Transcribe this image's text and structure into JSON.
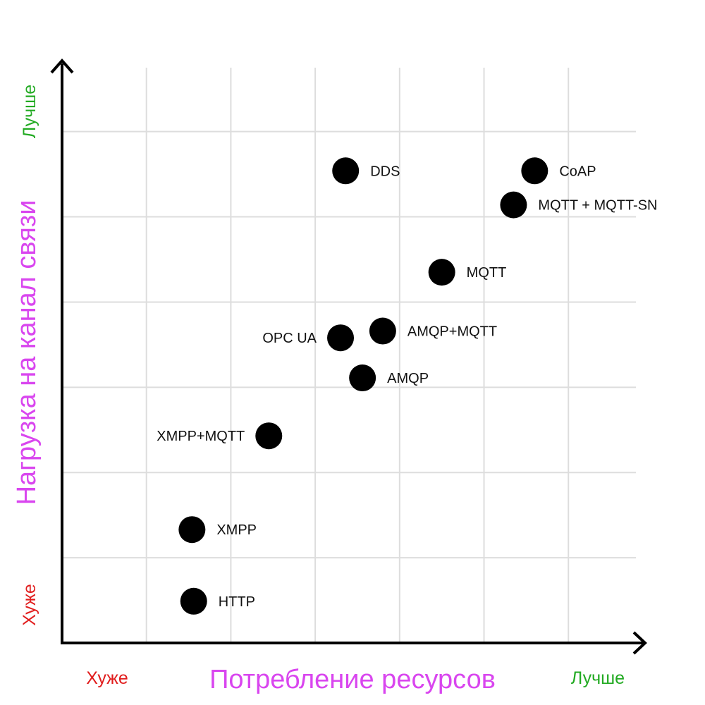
{
  "chart_data": {
    "type": "scatter",
    "xlabel": "Потребление ресурсов",
    "ylabel": "Нагрузка на канал связи",
    "x_low_label": "Хуже",
    "x_high_label": "Лучше",
    "y_low_label": "Хуже",
    "y_high_label": "Лучше",
    "xlim": [
      0,
      6.8
    ],
    "ylim": [
      0,
      6.75
    ],
    "grid": true,
    "colors": {
      "axis_title": "#d946ef",
      "worse": "#e11d1d",
      "better": "#22aa22",
      "grid": "#dddddd",
      "point": "#000000"
    },
    "points": [
      {
        "label": "DDS",
        "x": 3.36,
        "y": 5.54,
        "label_side": "right"
      },
      {
        "label": "CoAP",
        "x": 5.6,
        "y": 5.54,
        "label_side": "right"
      },
      {
        "label": "MQTT + MQTT-SN",
        "x": 5.35,
        "y": 5.14,
        "label_side": "right"
      },
      {
        "label": "MQTT",
        "x": 4.5,
        "y": 4.35,
        "label_side": "right"
      },
      {
        "label": "AMQP+MQTT",
        "x": 3.8,
        "y": 3.66,
        "label_side": "right"
      },
      {
        "label": "OPC UA",
        "x": 3.3,
        "y": 3.58,
        "label_side": "left"
      },
      {
        "label": "AMQP",
        "x": 3.56,
        "y": 3.11,
        "label_side": "right"
      },
      {
        "label": "XMPP+MQTT",
        "x": 2.45,
        "y": 2.43,
        "label_side": "left"
      },
      {
        "label": "XMPP",
        "x": 1.54,
        "y": 1.33,
        "label_side": "right"
      },
      {
        "label": "HTTP",
        "x": 1.56,
        "y": 0.49,
        "label_side": "right"
      }
    ]
  }
}
